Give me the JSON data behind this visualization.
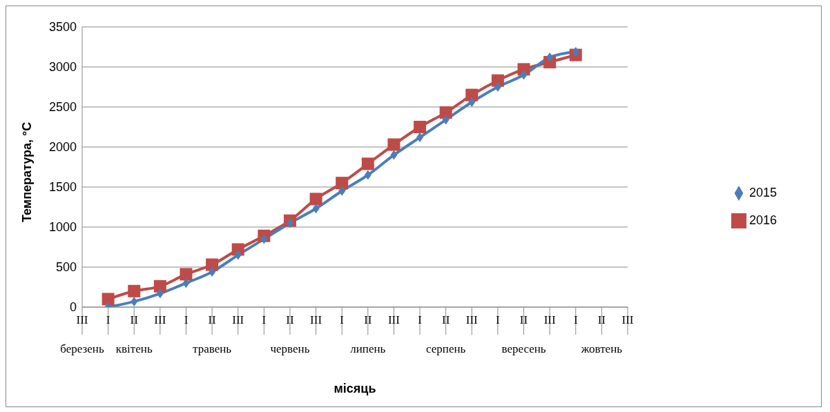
{
  "chart_data": {
    "type": "line",
    "ylabel": "Температура, °С",
    "xlabel": "місяць",
    "categories": [
      "III",
      "I",
      "II",
      "III",
      "I",
      "II",
      "III",
      "I",
      "II",
      "III",
      "I",
      "II",
      "III",
      "I",
      "II",
      "III",
      "I",
      "II",
      "III",
      "I",
      "II",
      "III"
    ],
    "annotations": [
      "березень",
      "квітень",
      "травень",
      "червень",
      "липень",
      "серпень",
      "вересень",
      "жовтень"
    ],
    "series": [
      {
        "name": "2015",
        "color": "#4a7ebb",
        "marker": "diamond",
        "values": [
          null,
          0,
          70,
          170,
          300,
          440,
          650,
          850,
          1050,
          1230,
          1450,
          1650,
          1900,
          2120,
          2340,
          2560,
          2750,
          2900,
          3120,
          3190,
          null,
          null
        ]
      },
      {
        "name": "2016",
        "color": "#be4b48",
        "marker": "square",
        "values": [
          null,
          100,
          200,
          260,
          410,
          530,
          720,
          890,
          1080,
          1350,
          1550,
          1790,
          2030,
          2250,
          2430,
          2650,
          2830,
          2970,
          3060,
          3150,
          null,
          null
        ]
      }
    ],
    "ylim": [
      0,
      3500
    ],
    "yticks": [
      0,
      500,
      1000,
      1500,
      2000,
      2500,
      3000,
      3500
    ],
    "grid": "y",
    "legend": "right",
    "line_style": "solid"
  }
}
